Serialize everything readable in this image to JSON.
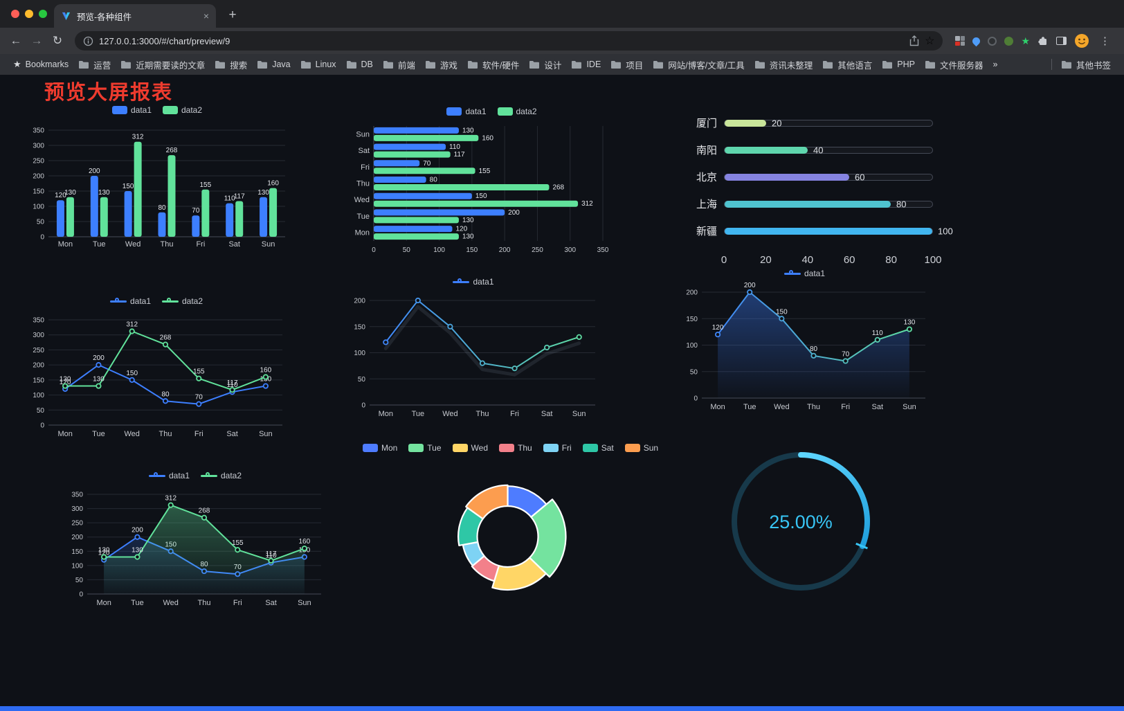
{
  "browser": {
    "tab_title": "预览-各种组件",
    "url": "127.0.0.1:3000/#/chart/preview/9",
    "bookmarks_label": "Bookmarks",
    "bookmarks": [
      "运营",
      "近期需要读的文章",
      "搜索",
      "Java",
      "Linux",
      "DB",
      "前端",
      "游戏",
      "软件/硬件",
      "设计",
      "IDE",
      "项目",
      "网站/博客/文章/工具",
      "资讯未整理",
      "其他语言",
      "PHP",
      "文件服务器"
    ],
    "bookmarks_overflow": "»",
    "other_bookmarks": "其他书签",
    "traffic_colors": [
      "#ff5f57",
      "#febc2e",
      "#28c840"
    ]
  },
  "page": {
    "title": "预览大屏报表",
    "title_color": "#ee3b2e",
    "background": "#0e1117",
    "footer_color": "#2e6bf2"
  },
  "chart_data": [
    {
      "id": "bar1",
      "type": "bar",
      "categories": [
        "Mon",
        "Tue",
        "Wed",
        "Thu",
        "Fri",
        "Sat",
        "Sun"
      ],
      "series": [
        {
          "name": "data1",
          "color": "#3d7fff",
          "values": [
            120,
            200,
            150,
            80,
            70,
            110,
            130
          ]
        },
        {
          "name": "data2",
          "color": "#61e29b",
          "values": [
            130,
            130,
            312,
            268,
            155,
            117,
            160
          ]
        }
      ],
      "ylim": [
        0,
        350
      ],
      "ytick": 50,
      "grid": true,
      "legend_position": "top",
      "show_labels": true
    },
    {
      "id": "hbar1",
      "type": "hbar",
      "categories": [
        "Mon",
        "Tue",
        "Wed",
        "Thu",
        "Fri",
        "Sat",
        "Sun"
      ],
      "series": [
        {
          "name": "data1",
          "color": "#3d7fff",
          "values": [
            120,
            200,
            150,
            80,
            70,
            110,
            130
          ]
        },
        {
          "name": "data2",
          "color": "#61e29b",
          "values": [
            130,
            130,
            312,
            268,
            155,
            117,
            160
          ]
        }
      ],
      "xlim": [
        0,
        350
      ],
      "xtick": 50,
      "grid": true,
      "legend_position": "top",
      "show_labels": true
    },
    {
      "id": "prog1",
      "type": "progress",
      "max": 100,
      "axis_ticks": [
        0,
        20,
        40,
        60,
        80,
        100
      ],
      "items": [
        {
          "label": "厦门",
          "value": 20,
          "color": "#c9e59a"
        },
        {
          "label": "南阳",
          "value": 40,
          "color": "#5fd6ad"
        },
        {
          "label": "北京",
          "value": 60,
          "color": "#8583e0"
        },
        {
          "label": "上海",
          "value": 80,
          "color": "#4fc3cf"
        },
        {
          "label": "新疆",
          "value": 100,
          "color": "#41b6f0"
        }
      ]
    },
    {
      "id": "line2a",
      "type": "line",
      "categories": [
        "Mon",
        "Tue",
        "Wed",
        "Thu",
        "Fri",
        "Sat",
        "Sun"
      ],
      "series": [
        {
          "name": "data1",
          "color": "#3d7fff",
          "values": [
            120,
            200,
            150,
            80,
            70,
            110,
            130
          ]
        },
        {
          "name": "data2",
          "color": "#61e29b",
          "values": [
            130,
            130,
            312,
            268,
            155,
            117,
            160
          ]
        }
      ],
      "ylim": [
        0,
        350
      ],
      "ytick": 50,
      "show_labels": true
    },
    {
      "id": "line1",
      "type": "line",
      "categories": [
        "Mon",
        "Tue",
        "Wed",
        "Thu",
        "Fri",
        "Sat",
        "Sun"
      ],
      "series": [
        {
          "name": "data1",
          "gradient": [
            "#3d7fff",
            "#61e29b"
          ],
          "values": [
            120,
            200,
            150,
            80,
            70,
            110,
            130
          ]
        }
      ],
      "ylim": [
        0,
        200
      ],
      "ytick": 50,
      "show_labels": false,
      "shadow": true
    },
    {
      "id": "area1",
      "type": "line",
      "categories": [
        "Mon",
        "Tue",
        "Wed",
        "Thu",
        "Fri",
        "Sat",
        "Sun"
      ],
      "series": [
        {
          "name": "data1",
          "gradient": [
            "#3d7fff",
            "#61e29b"
          ],
          "area": true,
          "area_opacity": 0.4,
          "values": [
            120,
            200,
            150,
            80,
            70,
            110,
            130
          ]
        }
      ],
      "ylim": [
        0,
        200
      ],
      "ytick": 50,
      "show_labels": true
    },
    {
      "id": "line2b",
      "type": "line",
      "categories": [
        "Mon",
        "Tue",
        "Wed",
        "Thu",
        "Fri",
        "Sat",
        "Sun"
      ],
      "series": [
        {
          "name": "data1",
          "color": "#3d7fff",
          "area": true,
          "area_opacity": 0.2,
          "values": [
            120,
            200,
            150,
            80,
            70,
            110,
            130
          ]
        },
        {
          "name": "data2",
          "color": "#61e29b",
          "area": true,
          "area_opacity": 0.35,
          "values": [
            130,
            130,
            312,
            268,
            155,
            117,
            160
          ]
        }
      ],
      "ylim": [
        0,
        350
      ],
      "ytick": 50,
      "show_labels": true
    },
    {
      "id": "pie1",
      "type": "pie",
      "rose": true,
      "inner_radius": 44,
      "slices": [
        {
          "label": "Mon",
          "value": 120,
          "color": "#4e7cff"
        },
        {
          "label": "Tue",
          "value": 200,
          "color": "#74e39f"
        },
        {
          "label": "Wed",
          "value": 150,
          "color": "#ffd666"
        },
        {
          "label": "Thu",
          "value": 80,
          "color": "#f2808a"
        },
        {
          "label": "Fri",
          "value": 70,
          "color": "#7ed3f4"
        },
        {
          "label": "Sat",
          "value": 110,
          "color": "#2ec7a6"
        },
        {
          "label": "Sun",
          "value": 130,
          "color": "#fc9d4f"
        }
      ]
    },
    {
      "id": "gauge1",
      "type": "gauge",
      "value": 25,
      "label": "25.00%",
      "color": "#38c5f5",
      "track_color": "#17394a"
    }
  ]
}
